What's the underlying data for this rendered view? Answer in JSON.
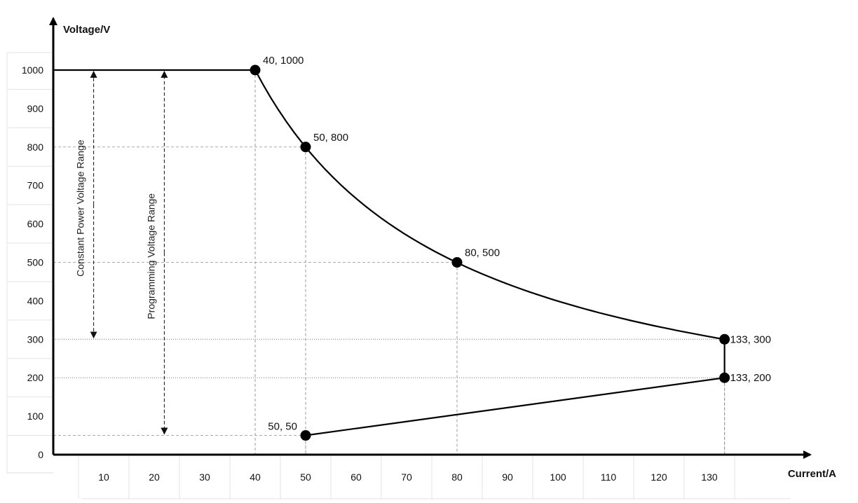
{
  "chart_data": {
    "type": "line",
    "xlabel": "Current/A",
    "ylabel": "Voltage/V",
    "x_ticks": [
      10,
      20,
      30,
      40,
      50,
      60,
      70,
      80,
      90,
      100,
      110,
      120,
      130
    ],
    "y_ticks": [
      0,
      100,
      200,
      300,
      400,
      500,
      600,
      700,
      800,
      900,
      1000
    ],
    "xlim": [
      0,
      155
    ],
    "ylim": [
      0,
      1100
    ],
    "series": [
      {
        "name": "",
        "segments": [
          {
            "kind": "line",
            "points": [
              [
                0,
                1000
              ],
              [
                40,
                1000
              ]
            ]
          },
          {
            "kind": "constant_power",
            "from": [
              40,
              1000
            ],
            "to": [
              133,
              300
            ]
          },
          {
            "kind": "line",
            "points": [
              [
                133,
                300
              ],
              [
                133,
                200
              ]
            ]
          },
          {
            "kind": "line",
            "points": [
              [
                133,
                200
              ],
              [
                50,
                50
              ]
            ]
          }
        ]
      }
    ],
    "points": [
      {
        "x": 40,
        "y": 1000,
        "label": "40, 1000"
      },
      {
        "x": 50,
        "y": 800,
        "label": "50, 800"
      },
      {
        "x": 80,
        "y": 500,
        "label": "80, 500"
      },
      {
        "x": 133,
        "y": 300,
        "label": "133, 300"
      },
      {
        "x": 133,
        "y": 200,
        "label": "133, 200"
      },
      {
        "x": 50,
        "y": 50,
        "label": "50, 50"
      }
    ],
    "ranges": [
      {
        "label": "Constant Power Voltage Range",
        "x": 8,
        "from": 1000,
        "to": 300
      },
      {
        "label": "Programming Voltage Range",
        "x": 22,
        "from": 1000,
        "to": 50
      }
    ],
    "grid": false
  }
}
